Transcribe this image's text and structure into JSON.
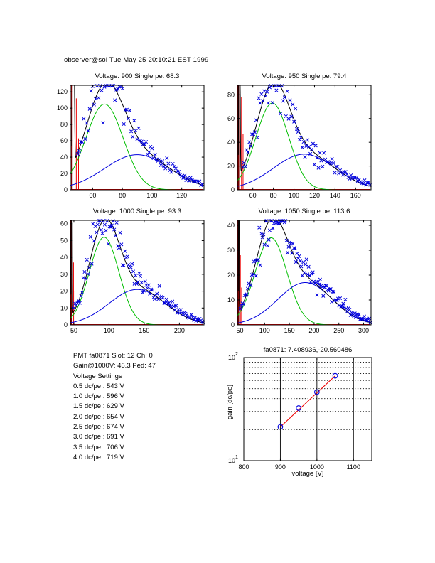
{
  "page": {
    "header": "observer@sol Tue May 25 20:10:21 EST 1999"
  },
  "info_panel": {
    "lines": [
      "PMT fa0871 Slot: 12 Ch: 0",
      "Gain@1000V: 46.3 Ped: 47",
      "Voltage Settings",
      "0.5 dc/pe : 543 V",
      "1.0 dc/pe : 596 V",
      "1.5 dc/pe : 629 V",
      "2.0 dc/pe : 654 V",
      "2.5 dc/pe : 674 V",
      "3.0 dc/pe : 691 V",
      "3.5 dc/pe : 706 V",
      "4.0 dc/pe : 719 V"
    ]
  },
  "colors": {
    "blue": "#0000DE",
    "green": "#00BE00",
    "red": "#EE0000",
    "maroon": "#7B0000",
    "black": "#000000",
    "background": "#FFFFFF"
  },
  "chart_data": [
    {
      "type": "scatter",
      "subtype": "pmt_fit",
      "title": "Voltage: 900 Single pe: 68.3",
      "xlim": [
        45,
        135
      ],
      "ylim": [
        0,
        128
      ],
      "xticks": [
        60,
        80,
        100,
        120
      ],
      "yticks": [
        0,
        20,
        40,
        60,
        80,
        100,
        120
      ],
      "fit_curves": {
        "single_pe": {
          "color_key": "green",
          "amp": 105,
          "mean": 68,
          "sigma": 12.5
        },
        "multi_pe": {
          "color_key": "blue",
          "amp": 43,
          "mean": 90,
          "sigma": 22
        },
        "total": {
          "color_key": "black"
        }
      },
      "pedestal": {
        "x": 47,
        "color_key": "maroon",
        "spike_color_key": "red",
        "spikes": [
          {
            "dx": 2.0,
            "h": 112
          },
          {
            "dx": 3.5,
            "h": 63
          }
        ]
      },
      "scatter": {
        "marker": "x",
        "color_key": "blue",
        "n": 85,
        "seed": 7,
        "noise": 0.13
      }
    },
    {
      "type": "scatter",
      "subtype": "pmt_fit",
      "title": "Voltage: 950 Single pe: 79.4",
      "xlim": [
        45,
        175
      ],
      "ylim": [
        0,
        88
      ],
      "xticks": [
        60,
        80,
        100,
        120,
        140,
        160
      ],
      "yticks": [
        0,
        20,
        40,
        60,
        80
      ],
      "fit_curves": {
        "single_pe": {
          "color_key": "green",
          "amp": 73,
          "mean": 79,
          "sigma": 16
        },
        "multi_pe": {
          "color_key": "blue",
          "amp": 30,
          "mean": 110,
          "sigma": 30
        },
        "total": {
          "color_key": "black"
        }
      },
      "pedestal": {
        "x": 47,
        "color_key": "maroon",
        "spike_color_key": "red",
        "spikes": [
          {
            "dx": 2.0,
            "h": 78
          },
          {
            "dx": 3.5,
            "h": 47
          }
        ]
      },
      "scatter": {
        "marker": "x",
        "color_key": "blue",
        "n": 95,
        "seed": 11,
        "noise": 0.13
      }
    },
    {
      "type": "scatter",
      "subtype": "pmt_fit",
      "title": "Voltage: 1000 Single pe: 93.3",
      "xlim": [
        45,
        235
      ],
      "ylim": [
        0,
        62
      ],
      "xticks": [
        50,
        100,
        150,
        200
      ],
      "yticks": [
        0,
        10,
        20,
        30,
        40,
        50,
        60
      ],
      "fit_curves": {
        "single_pe": {
          "color_key": "green",
          "amp": 52,
          "mean": 93,
          "sigma": 21
        },
        "multi_pe": {
          "color_key": "blue",
          "amp": 21,
          "mean": 140,
          "sigma": 40
        },
        "total": {
          "color_key": "black"
        }
      },
      "pedestal": {
        "x": 47,
        "color_key": "maroon",
        "spike_color_key": "red",
        "spikes": [
          {
            "dx": 2.5,
            "h": 37
          },
          {
            "dx": 4.5,
            "h": 20
          }
        ]
      },
      "scatter": {
        "marker": "x",
        "color_key": "blue",
        "n": 110,
        "seed": 13,
        "noise": 0.13
      }
    },
    {
      "type": "scatter",
      "subtype": "pmt_fit",
      "title": "Voltage: 1050 Single pe: 113.6",
      "xlim": [
        45,
        315
      ],
      "ylim": [
        0,
        42
      ],
      "xticks": [
        50,
        100,
        150,
        200,
        250,
        300
      ],
      "yticks": [
        0,
        10,
        20,
        30,
        40
      ],
      "fit_curves": {
        "single_pe": {
          "color_key": "green",
          "amp": 35,
          "mean": 113,
          "sigma": 32
        },
        "multi_pe": {
          "color_key": "blue",
          "amp": 17,
          "mean": 182,
          "sigma": 55
        },
        "total": {
          "color_key": "black"
        }
      },
      "pedestal": {
        "x": 48,
        "color_key": "maroon",
        "spike_color_key": "red",
        "spikes": [
          {
            "dx": 3.0,
            "h": 28
          },
          {
            "dx": 5.5,
            "h": 15
          }
        ]
      },
      "scatter": {
        "marker": "x",
        "color_key": "blue",
        "n": 125,
        "seed": 17,
        "noise": 0.13
      }
    },
    {
      "type": "line",
      "subtype": "gain_log",
      "title": "fa0871: 7.408936,-20.560486",
      "xlabel": "voltage [V]",
      "ylabel": "gain [dc/pe]",
      "xlim": [
        800,
        1150
      ],
      "ylog_lim": [
        10,
        100
      ],
      "xticks": [
        800,
        900,
        1000,
        1100
      ],
      "ytick_labels": [
        {
          "value": 10,
          "base": "10",
          "exp": "1"
        },
        {
          "value": 100,
          "base": "10",
          "exp": "2"
        }
      ],
      "grid_vertical": [
        900,
        1000,
        1100
      ],
      "grid_horizontal_dotted": [
        20,
        30,
        40,
        50,
        60,
        70,
        80,
        90
      ],
      "points": {
        "marker": "o",
        "color_key": "blue",
        "x": [
          900,
          950,
          1000,
          1050
        ],
        "y": [
          21.3,
          32.4,
          46.3,
          66.6
        ]
      },
      "fit_line": {
        "color_key": "red",
        "x": [
          900,
          1050
        ],
        "y": [
          21.25,
          66.57
        ]
      }
    }
  ]
}
